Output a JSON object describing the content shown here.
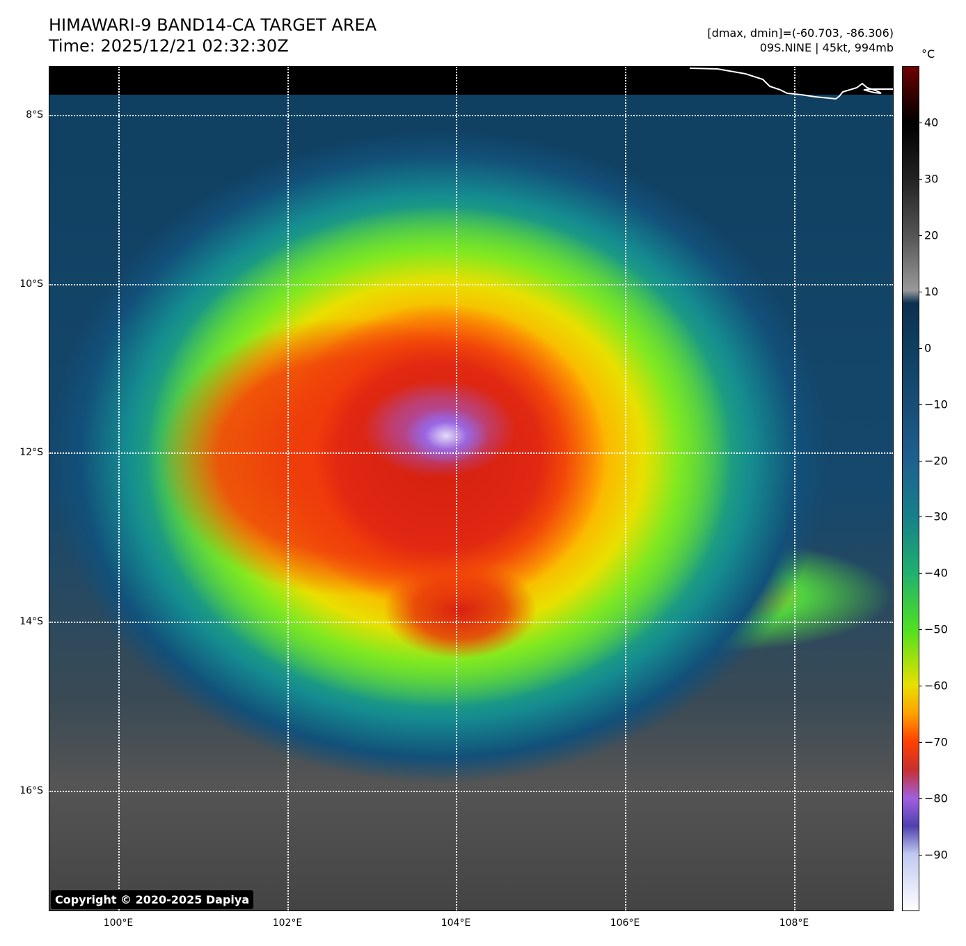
{
  "header": {
    "title": "HIMAWARI-9 BAND14-CA TARGET AREA",
    "time": "Time: 2025/12/21 02:32:30Z",
    "range": "[dmax, dmin]=(-60.703, -86.306)",
    "storm": "09S.NINE | 45kt, 994mb"
  },
  "map": {
    "lat_labels": [
      "8°S",
      "10°S",
      "12°S",
      "14°S",
      "16°S"
    ],
    "lon_labels": [
      "100°E",
      "102°E",
      "104°E",
      "106°E",
      "108°E"
    ],
    "copyright": "Copyright © 2020-2025 Dapiya"
  },
  "colorbar": {
    "unit": "°C",
    "range": [
      -100,
      50
    ],
    "ticks": [
      "40",
      "30",
      "20",
      "10",
      "0",
      "−10",
      "−20",
      "−30",
      "−40",
      "−50",
      "−60",
      "−70",
      "−80",
      "−90"
    ]
  }
}
